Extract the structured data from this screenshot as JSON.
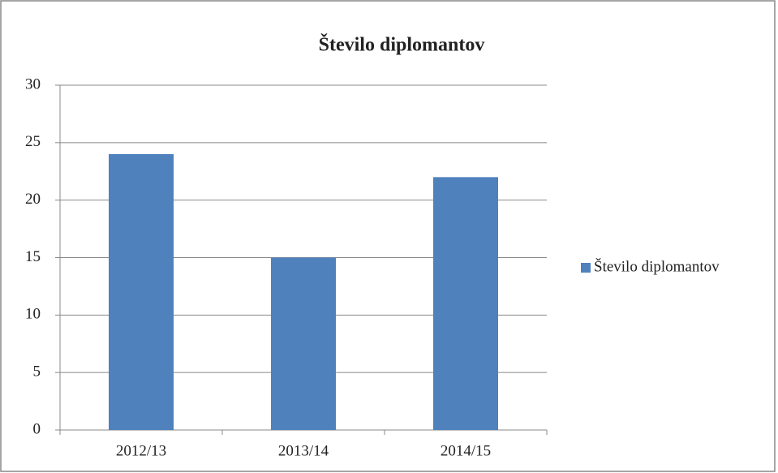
{
  "chart_data": {
    "type": "bar",
    "title": "Število diplomantov",
    "categories": [
      "2012/13",
      "2013/14",
      "2014/15"
    ],
    "series": [
      {
        "name": "Število diplomantov",
        "color": "#4f81bd",
        "values": [
          24,
          15,
          22
        ]
      }
    ],
    "ylim": [
      0,
      30
    ],
    "yticks": [
      0,
      5,
      10,
      15,
      20,
      25,
      30
    ],
    "grid": true,
    "legend": "right"
  }
}
